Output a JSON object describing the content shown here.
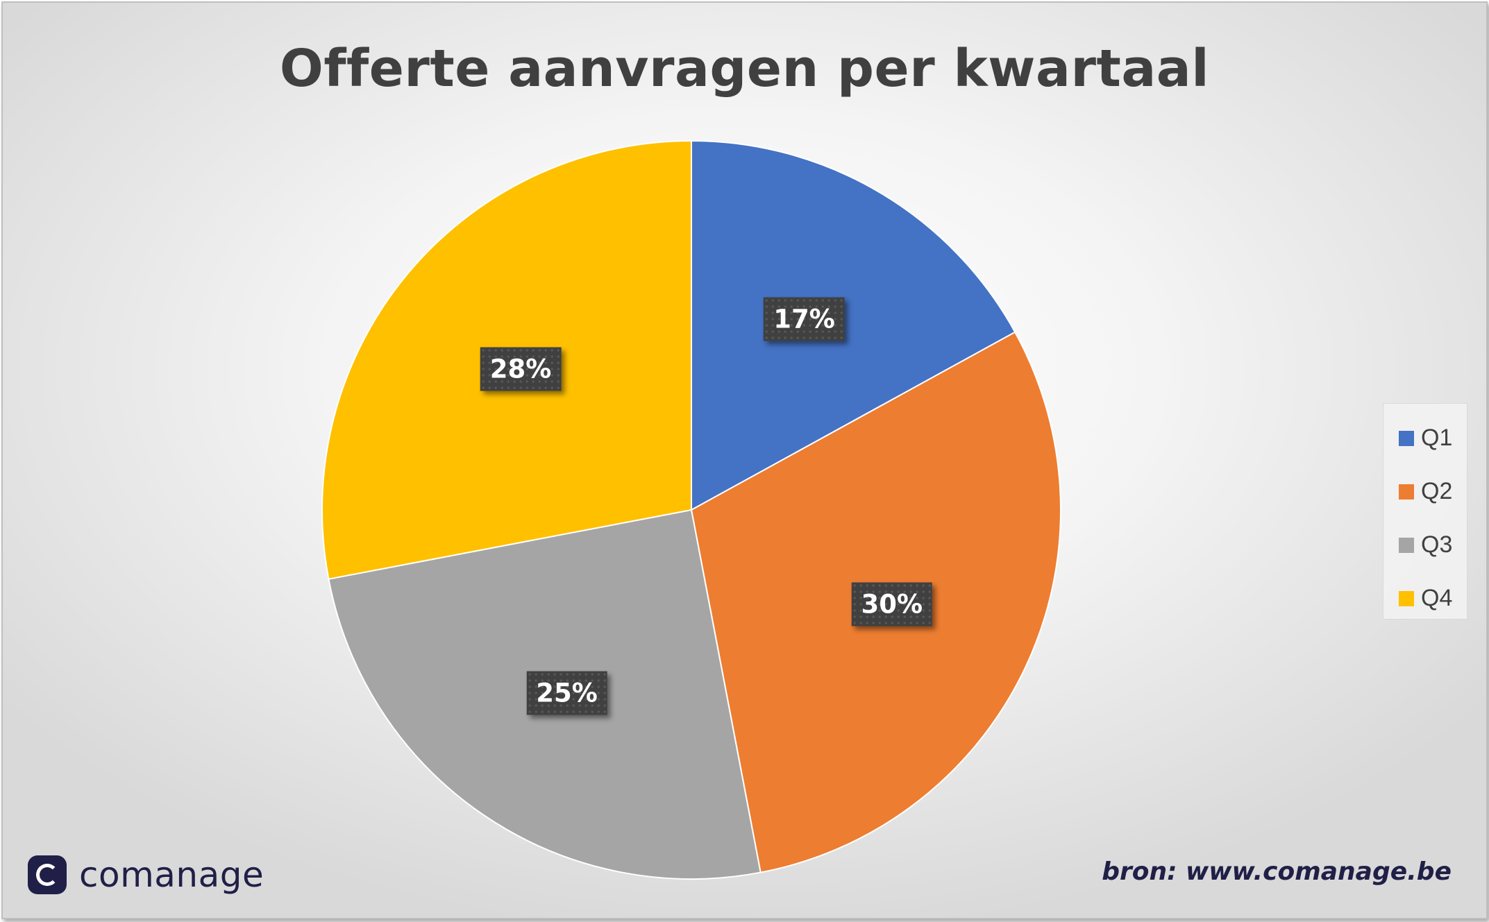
{
  "chart_data": {
    "type": "pie",
    "title": "Offerte aanvragen per kwartaal",
    "categories": [
      "Q1",
      "Q2",
      "Q3",
      "Q4"
    ],
    "values": [
      17,
      30,
      25,
      28
    ],
    "labels": [
      "17%",
      "30%",
      "25%",
      "28%"
    ],
    "colors": [
      "#4472c4",
      "#ed7d31",
      "#a5a5a5",
      "#ffc000"
    ],
    "start_angle": "12 o'clock",
    "direction": "clockwise",
    "legend": "right"
  },
  "brand": {
    "name": "comanage",
    "logo_icon": "comanage-logo-icon"
  },
  "source": "bron: www.comanage.be"
}
